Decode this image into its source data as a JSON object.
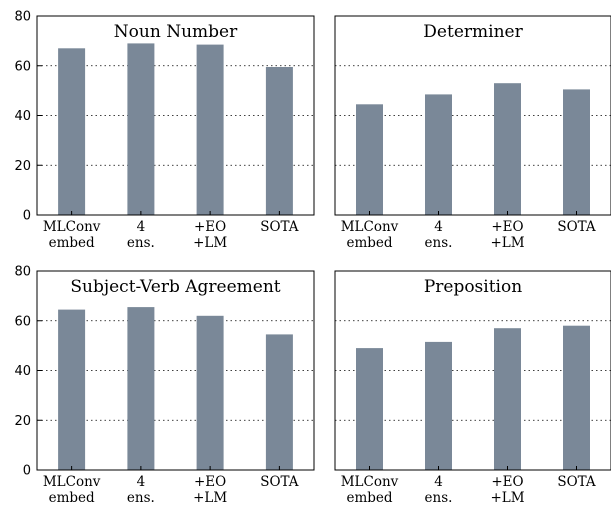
{
  "colors": {
    "bar": "#7a8898",
    "frame": "#000000",
    "background": "#ffffff"
  },
  "chart_data": [
    {
      "type": "bar",
      "title": "Noun Number",
      "categories": [
        [
          "MLConv",
          "embed"
        ],
        [
          "4",
          "ens."
        ],
        [
          "+EO",
          "+LM"
        ],
        [
          "SOTA"
        ]
      ],
      "values": [
        67,
        69,
        68.5,
        59.5
      ],
      "ylim": [
        0,
        80
      ],
      "yticks": [
        0,
        20,
        40,
        60,
        80
      ],
      "show_yticks": true,
      "grid": "horizontal-dotted"
    },
    {
      "type": "bar",
      "title": "Determiner",
      "categories": [
        [
          "MLConv",
          "embed"
        ],
        [
          "4",
          "ens."
        ],
        [
          "+EO",
          "+LM"
        ],
        [
          "SOTA"
        ]
      ],
      "values": [
        44.5,
        48.5,
        53,
        50.5
      ],
      "ylim": [
        0,
        80
      ],
      "yticks": [
        0,
        20,
        40,
        60,
        80
      ],
      "show_yticks": false,
      "grid": "horizontal-dotted"
    },
    {
      "type": "bar",
      "title": "Subject-Verb Agreement",
      "categories": [
        [
          "MLConv",
          "embed"
        ],
        [
          "4",
          "ens."
        ],
        [
          "+EO",
          "+LM"
        ],
        [
          "SOTA"
        ]
      ],
      "values": [
        64.5,
        65.5,
        62,
        54.5
      ],
      "ylim": [
        0,
        80
      ],
      "yticks": [
        0,
        20,
        40,
        60,
        80
      ],
      "show_yticks": true,
      "grid": "horizontal-dotted"
    },
    {
      "type": "bar",
      "title": "Preposition",
      "categories": [
        [
          "MLConv",
          "embed"
        ],
        [
          "4",
          "ens."
        ],
        [
          "+EO",
          "+LM"
        ],
        [
          "SOTA"
        ]
      ],
      "values": [
        49,
        51.5,
        57,
        58
      ],
      "ylim": [
        0,
        80
      ],
      "yticks": [
        0,
        20,
        40,
        60,
        80
      ],
      "show_yticks": false,
      "grid": "horizontal-dotted"
    }
  ]
}
